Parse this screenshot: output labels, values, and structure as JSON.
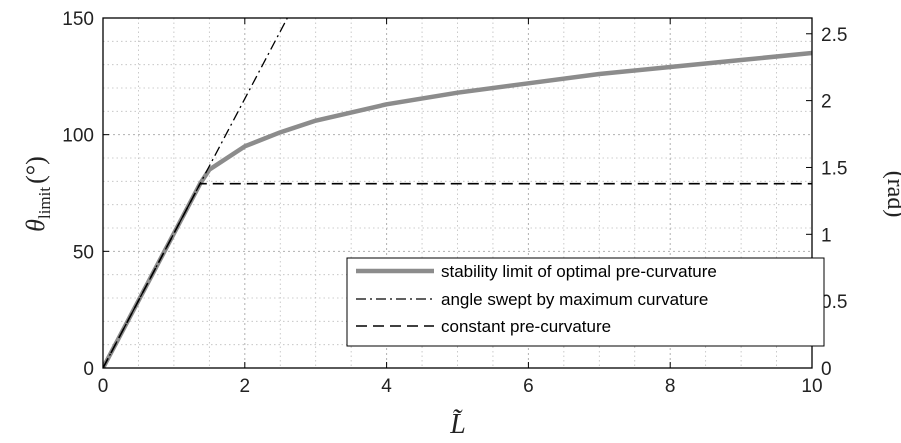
{
  "chart_data": {
    "type": "line",
    "xlabel": "L̃",
    "ylabel_left": {
      "symbol": "θ",
      "subscript": "limit",
      "unit": "(°)"
    },
    "ylabel_right": "(rad)",
    "xlim": [
      0,
      10
    ],
    "ylim_left": [
      0,
      150
    ],
    "ylim_right": [
      0,
      2.618
    ],
    "x_ticks": [
      "0",
      "2",
      "4",
      "6",
      "8",
      "10"
    ],
    "y_ticks_left": [
      "0",
      "50",
      "100",
      "150"
    ],
    "y_ticks_right": [
      "0",
      "0.5",
      "1",
      "1.5",
      "2",
      "2.5"
    ],
    "grid": true,
    "minor_grid": true,
    "legend_position": "lower-right",
    "series": [
      {
        "name": "stability limit of optimal pre-curvature",
        "style": "solid-thick",
        "color": "#8c8c8c",
        "x": [
          0,
          1.37,
          1.5,
          2,
          2.5,
          3,
          4,
          5,
          6,
          7,
          8,
          9,
          10
        ],
        "y": [
          0,
          79,
          85,
          95,
          101,
          106,
          113,
          118,
          122,
          126,
          129,
          132,
          135
        ]
      },
      {
        "name": "angle swept by maximum curvature",
        "style": "dash-dot",
        "color": "#000000",
        "x": [
          0,
          2.6
        ],
        "y": [
          0,
          150
        ]
      },
      {
        "name": "constant pre-curvature",
        "style": "dashed",
        "color": "#000000",
        "x": [
          0,
          1.37,
          10
        ],
        "y": [
          0,
          79,
          79
        ]
      }
    ]
  }
}
